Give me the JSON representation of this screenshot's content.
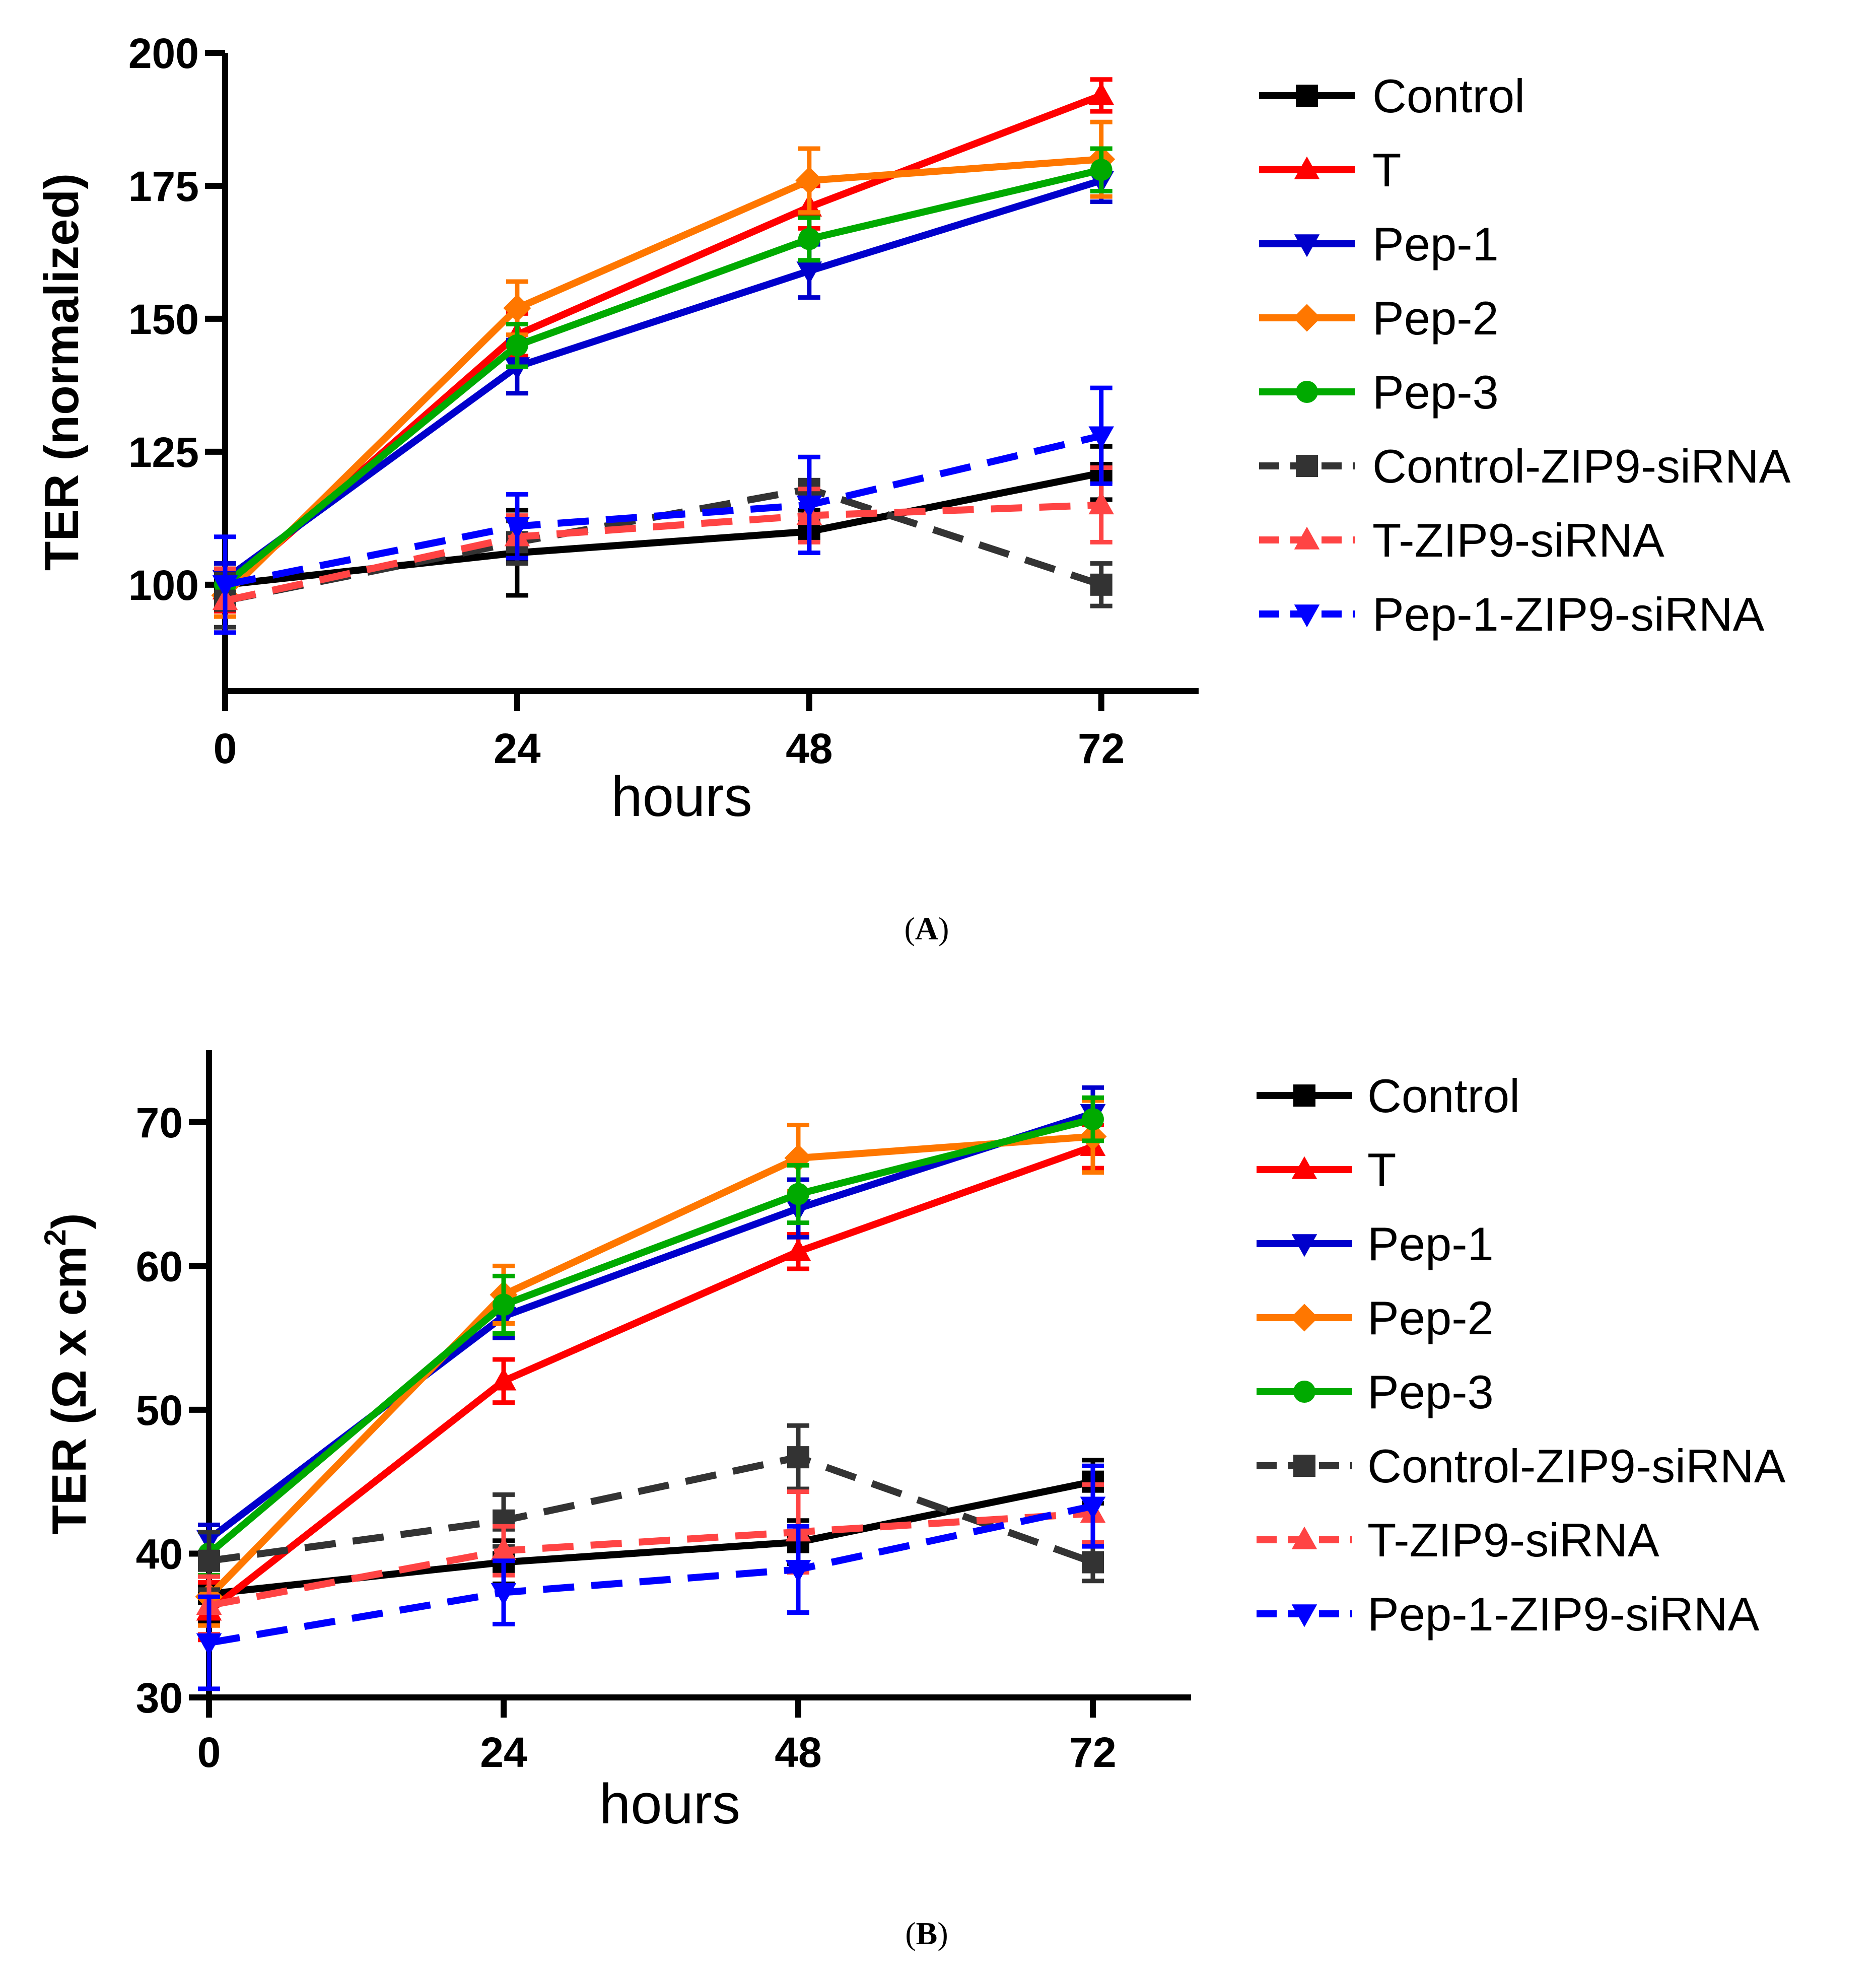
{
  "chart_data": [
    {
      "type": "line",
      "panel_label": "A",
      "xlabel": "hours",
      "ylabel": "TER (normalized)",
      "ylabel_parts": [
        "TER (normalized)"
      ],
      "x": [
        0,
        24,
        48,
        72
      ],
      "xlim": [
        0,
        80
      ],
      "ylim": [
        80,
        200
      ],
      "xticks": [
        "0",
        "24",
        "48",
        "72"
      ],
      "yticks": [
        "100",
        "125",
        "150",
        "175",
        "200"
      ],
      "ytick_values": [
        100,
        125,
        150,
        175,
        200
      ],
      "grid": false,
      "legend_position": "right",
      "series": [
        {
          "name": "Control",
          "color": "#000000",
          "dashed": false,
          "marker": "square",
          "values": [
            100,
            106,
            110,
            121
          ],
          "errors": [
            4,
            8,
            4,
            5
          ]
        },
        {
          "name": "T",
          "color": "#ff0000",
          "dashed": false,
          "marker": "triangle-up",
          "values": [
            99,
            147,
            171,
            192
          ],
          "errors": [
            4,
            4,
            4,
            3
          ]
        },
        {
          "name": "Pep-1",
          "color": "#0000cc",
          "dashed": false,
          "marker": "triangle-down",
          "values": [
            101,
            141,
            159,
            176
          ],
          "errors": [
            3,
            5,
            5,
            4
          ]
        },
        {
          "name": "Pep-2",
          "color": "#ff7700",
          "dashed": false,
          "marker": "diamond",
          "values": [
            98,
            152,
            176,
            180
          ],
          "errors": [
            4,
            5,
            6,
            7
          ]
        },
        {
          "name": "Pep-3",
          "color": "#00aa00",
          "dashed": false,
          "marker": "circle",
          "values": [
            100,
            145,
            165,
            178
          ],
          "errors": [
            3,
            4,
            4,
            4
          ]
        },
        {
          "name": "Control-ZIP9-siRNA",
          "color": "#333333",
          "dashed": true,
          "marker": "square",
          "values": [
            97,
            108,
            118,
            100
          ],
          "errors": [
            5,
            4,
            6,
            4
          ]
        },
        {
          "name": "T-ZIP9-siRNA",
          "color": "#ff4444",
          "dashed": true,
          "marker": "triangle-up",
          "values": [
            97,
            109,
            113,
            115
          ],
          "errors": [
            6,
            4,
            5,
            7
          ]
        },
        {
          "name": "Pep-1-ZIP9-siRNA",
          "color": "#0000ff",
          "dashed": true,
          "marker": "triangle-down",
          "values": [
            100,
            111,
            115,
            128
          ],
          "errors": [
            9,
            6,
            9,
            9
          ]
        }
      ]
    },
    {
      "type": "line",
      "panel_label": "B",
      "xlabel": "hours",
      "ylabel": "TER (Ω x cm²)",
      "ylabel_parts": [
        "TER (Ω x cm",
        "2",
        ")"
      ],
      "x": [
        0,
        24,
        48,
        72
      ],
      "xlim": [
        0,
        80
      ],
      "ylim": [
        30,
        75
      ],
      "xticks": [
        "0",
        "24",
        "48",
        "72"
      ],
      "yticks": [
        "30",
        "40",
        "50",
        "60",
        "70"
      ],
      "ytick_values": [
        30,
        40,
        50,
        60,
        70
      ],
      "grid": false,
      "legend_position": "right",
      "series": [
        {
          "name": "Control",
          "color": "#000000",
          "dashed": false,
          "marker": "square",
          "values": [
            37.2,
            39.4,
            40.8,
            45.0
          ],
          "errors": [
            2.0,
            1.5,
            1.5,
            1.5
          ]
        },
        {
          "name": "T",
          "color": "#ff0000",
          "dashed": false,
          "marker": "triangle-up",
          "values": [
            36.0,
            52.0,
            61.0,
            68.3
          ],
          "errors": [
            2.0,
            1.5,
            1.2,
            1.5
          ]
        },
        {
          "name": "Pep-1",
          "color": "#0000cc",
          "dashed": false,
          "marker": "triangle-down",
          "values": [
            41.0,
            56.5,
            64.0,
            70.6
          ],
          "errors": [
            1.0,
            1.5,
            2.0,
            1.8
          ]
        },
        {
          "name": "Pep-2",
          "color": "#ff7700",
          "dashed": false,
          "marker": "diamond",
          "values": [
            37.0,
            58.0,
            67.5,
            69.0
          ],
          "errors": [
            2.0,
            2.0,
            2.3,
            2.5
          ]
        },
        {
          "name": "Pep-3",
          "color": "#00aa00",
          "dashed": false,
          "marker": "circle",
          "values": [
            40.0,
            57.3,
            65.0,
            70.2
          ],
          "errors": [
            1.5,
            2.0,
            2.0,
            1.5
          ]
        },
        {
          "name": "Control-ZIP9-siRNA",
          "color": "#333333",
          "dashed": true,
          "marker": "square",
          "values": [
            39.5,
            42.3,
            46.7,
            39.4
          ],
          "errors": [
            2.0,
            1.8,
            2.2,
            1.3
          ]
        },
        {
          "name": "T-ZIP9-siRNA",
          "color": "#ff4444",
          "dashed": true,
          "marker": "triangle-up",
          "values": [
            36.4,
            40.2,
            41.5,
            42.8
          ],
          "errors": [
            2.0,
            1.7,
            2.8,
            2.0
          ]
        },
        {
          "name": "Pep-1-ZIP9-siRNA",
          "color": "#0000ff",
          "dashed": true,
          "marker": "triangle-down",
          "values": [
            33.8,
            37.3,
            38.9,
            43.3
          ],
          "errors": [
            3.2,
            2.2,
            3.0,
            2.8
          ]
        }
      ]
    }
  ]
}
